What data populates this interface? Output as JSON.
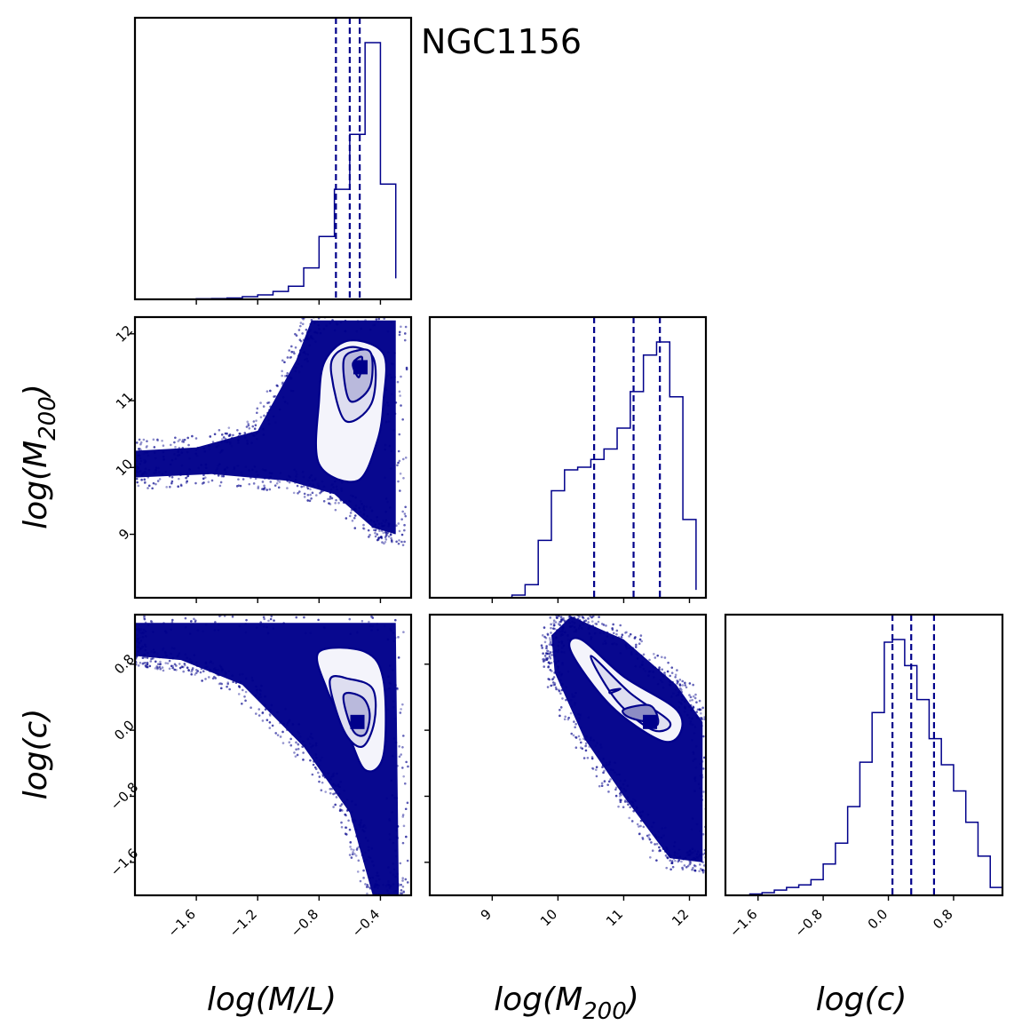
{
  "title": "NGC1156",
  "colors": {
    "main": "#00008b",
    "frame": "#000000",
    "fill_light": "#f2f2fa"
  },
  "chart_data": {
    "type": "corner",
    "parameters": [
      "log(M/L)",
      "log(M200)",
      "log(c)"
    ],
    "axis_labels": {
      "ml": {
        "pre": "log(M/L)",
        "sub": "",
        "post": ""
      },
      "m200": {
        "pre": "log(M",
        "sub": "200",
        "post": ")"
      },
      "c": {
        "pre": "log(c)",
        "sub": "",
        "post": ""
      }
    },
    "ranges": {
      "ml": [
        -2.0,
        -0.2
      ],
      "m200": [
        8.05,
        12.25
      ],
      "c": [
        -2.0,
        1.4
      ]
    },
    "ticks": {
      "ml": {
        "values": [
          -1.6,
          -1.2,
          -0.8,
          -0.4
        ],
        "labels": [
          "−1.6",
          "−1.2",
          "−0.8",
          "−0.4"
        ]
      },
      "m200": {
        "values": [
          9,
          10,
          11,
          12
        ],
        "labels": [
          "9",
          "10",
          "11",
          "12"
        ]
      },
      "c": {
        "values": [
          -1.6,
          -0.8,
          0.0,
          0.8
        ],
        "labels": [
          "−1.6",
          "−0.8",
          "0.0",
          "0.8"
        ]
      }
    },
    "histograms": {
      "ml": {
        "edges": [
          -1.7,
          -1.6,
          -1.5,
          -1.4,
          -1.3,
          -1.2,
          -1.1,
          -1.0,
          -0.9,
          -0.8,
          -0.7,
          -0.6,
          -0.5,
          -0.4,
          -0.3
        ],
        "counts": [
          0.1,
          0.2,
          0.3,
          0.5,
          1.0,
          1.7,
          3,
          5,
          12,
          24,
          42,
          63,
          98,
          44,
          8
        ],
        "quantiles": [
          -0.69,
          -0.6,
          -0.535
        ]
      },
      "m200": {
        "edges": [
          9.3,
          9.5,
          9.7,
          9.9,
          10.1,
          10.3,
          10.5,
          10.7,
          10.9,
          11.1,
          11.3,
          11.5,
          11.7,
          11.9,
          12.1
        ],
        "counts": [
          1,
          5,
          22,
          41,
          49,
          50,
          53,
          57,
          65,
          79,
          93,
          98,
          77,
          30,
          3
        ],
        "quantiles": [
          10.55,
          11.15,
          11.55
        ]
      },
      "c": {
        "edges": [
          -1.7,
          -1.55,
          -1.4,
          -1.25,
          -1.1,
          -0.95,
          -0.8,
          -0.65,
          -0.5,
          -0.35,
          -0.2,
          -0.05,
          0.05,
          0.2,
          0.35,
          0.5,
          0.65,
          0.8,
          0.95,
          1.1,
          1.25,
          1.4
        ],
        "counts": [
          0.5,
          1,
          2,
          3,
          4,
          6,
          12,
          20,
          34,
          51,
          70,
          97,
          98,
          88,
          75,
          60,
          50,
          40,
          28,
          15,
          3
        ],
        "quantiles": [
          0.05,
          0.28,
          0.56
        ]
      }
    },
    "panels_2d": [
      {
        "x": "ml",
        "y": "m200",
        "contours": [
          [
            [
              -0.8,
              10.05
            ],
            [
              -0.55,
              9.8
            ],
            [
              -0.42,
              10.4
            ],
            [
              -0.38,
              11.0
            ],
            [
              -0.38,
              11.7
            ],
            [
              -0.6,
              11.9
            ],
            [
              -0.76,
              11.6
            ],
            [
              -0.8,
              11.0
            ]
          ],
          [
            [
              -0.72,
              11.4
            ],
            [
              -0.63,
              10.7
            ],
            [
              -0.46,
              10.95
            ],
            [
              -0.44,
              11.6
            ],
            [
              -0.56,
              11.8
            ],
            [
              -0.69,
              11.7
            ]
          ],
          [
            [
              -0.64,
              11.6
            ],
            [
              -0.6,
              11.0
            ],
            [
              -0.47,
              11.2
            ],
            [
              -0.46,
              11.7
            ],
            [
              -0.55,
              11.75
            ]
          ],
          [
            [
              -0.58,
              11.55
            ],
            [
              -0.54,
              11.35
            ],
            [
              -0.52,
              11.65
            ]
          ]
        ],
        "dense_center": [
          -0.53,
          11.5
        ]
      },
      {
        "x": "ml",
        "y": "c",
        "contours": [
          [
            [
              -0.8,
              0.95
            ],
            [
              -0.75,
              0.5
            ],
            [
              -0.62,
              0.0
            ],
            [
              -0.5,
              -0.48
            ],
            [
              -0.38,
              -0.3
            ],
            [
              -0.38,
              0.6
            ],
            [
              -0.5,
              0.95
            ]
          ],
          [
            [
              -0.73,
              0.6
            ],
            [
              -0.64,
              0.0
            ],
            [
              -0.52,
              -0.2
            ],
            [
              -0.44,
              0.1
            ],
            [
              -0.45,
              0.5
            ],
            [
              -0.6,
              0.62
            ]
          ],
          [
            [
              -0.64,
              0.42
            ],
            [
              -0.58,
              0.0
            ],
            [
              -0.5,
              -0.05
            ],
            [
              -0.47,
              0.2
            ],
            [
              -0.52,
              0.4
            ]
          ]
        ],
        "dense_center": [
          -0.55,
          0.1
        ]
      },
      {
        "x": "m200",
        "y": "c",
        "contours": [
          [
            [
              10.2,
              0.95
            ],
            [
              10.35,
              1.1
            ],
            [
              11.0,
              0.65
            ],
            [
              11.8,
              0.25
            ],
            [
              11.85,
              -0.05
            ],
            [
              11.55,
              -0.12
            ],
            [
              10.8,
              0.3
            ]
          ],
          [
            [
              10.5,
              0.9
            ],
            [
              11.1,
              0.45
            ],
            [
              11.7,
              0.1
            ],
            [
              11.45,
              -0.0
            ],
            [
              10.9,
              0.35
            ]
          ],
          [
            [
              10.8,
              0.45
            ],
            [
              10.95,
              0.5
            ],
            [
              10.8,
              0.48
            ]
          ],
          [
            [
              11.0,
              0.25
            ],
            [
              11.4,
              0.3
            ],
            [
              11.5,
              0.1
            ],
            [
              11.1,
              0.15
            ]
          ],
          [
            [
              11.3,
              0.12
            ],
            [
              11.5,
              0.16
            ],
            [
              11.5,
              0.06
            ]
          ]
        ],
        "dense_center": [
          11.4,
          0.1
        ]
      }
    ]
  }
}
